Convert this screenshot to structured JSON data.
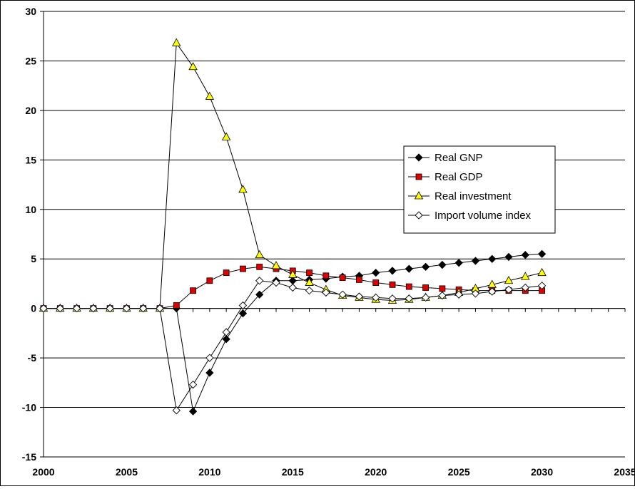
{
  "chart_data": {
    "type": "line",
    "title": "",
    "xlabel": "",
    "ylabel": "",
    "xlim": [
      2000,
      2035
    ],
    "ylim": [
      -15,
      30
    ],
    "xticks": [
      2000,
      2005,
      2010,
      2015,
      2020,
      2025,
      2030,
      2035
    ],
    "yticks": [
      -15,
      -10,
      -5,
      0,
      5,
      10,
      15,
      20,
      25,
      30
    ],
    "grid": "horizontal",
    "legend_position": "right",
    "x": [
      2000,
      2001,
      2002,
      2003,
      2004,
      2005,
      2006,
      2007,
      2008,
      2009,
      2010,
      2011,
      2012,
      2013,
      2014,
      2015,
      2016,
      2017,
      2018,
      2019,
      2020,
      2021,
      2022,
      2023,
      2024,
      2025,
      2026,
      2027,
      2028,
      2029,
      2030
    ],
    "series": [
      {
        "name": "Real GNP",
        "marker": "diamond-filled",
        "color": "#000000",
        "values": [
          0,
          0,
          0,
          0,
          0,
          0,
          0,
          0,
          0,
          -10.4,
          -6.5,
          -3.1,
          -0.5,
          1.4,
          2.8,
          2.8,
          2.9,
          3.0,
          3.2,
          3.3,
          3.6,
          3.8,
          4.0,
          4.2,
          4.4,
          4.6,
          4.8,
          5.0,
          5.2,
          5.4,
          5.5
        ]
      },
      {
        "name": "Real GDP",
        "marker": "square",
        "color": "#e00000",
        "values": [
          0,
          0,
          0,
          0,
          0,
          0,
          0,
          0,
          0.3,
          1.8,
          2.8,
          3.6,
          4.0,
          4.2,
          4.0,
          3.8,
          3.6,
          3.3,
          3.1,
          2.9,
          2.6,
          2.4,
          2.2,
          2.1,
          2.0,
          1.9,
          1.8,
          1.8,
          1.8,
          1.8,
          1.8
        ]
      },
      {
        "name": "Real investment",
        "marker": "triangle",
        "color": "#ffff00",
        "values": [
          0,
          0,
          0,
          0,
          0,
          0,
          0,
          0,
          26.8,
          24.4,
          21.4,
          17.3,
          12.0,
          5.4,
          4.3,
          3.4,
          2.6,
          1.9,
          1.3,
          1.1,
          0.9,
          0.8,
          0.9,
          1.1,
          1.3,
          1.6,
          2.0,
          2.4,
          2.8,
          3.2,
          3.6
        ]
      },
      {
        "name": "Import volume index",
        "marker": "diamond-open",
        "color": "#ffffff",
        "values": [
          0,
          0,
          0,
          0,
          0,
          0,
          0,
          0,
          -10.3,
          -7.7,
          -5.0,
          -2.4,
          0.3,
          2.8,
          2.6,
          2.1,
          1.8,
          1.6,
          1.4,
          1.2,
          1.1,
          1.0,
          1.0,
          1.1,
          1.3,
          1.4,
          1.5,
          1.7,
          1.9,
          2.1,
          2.3
        ]
      }
    ]
  }
}
